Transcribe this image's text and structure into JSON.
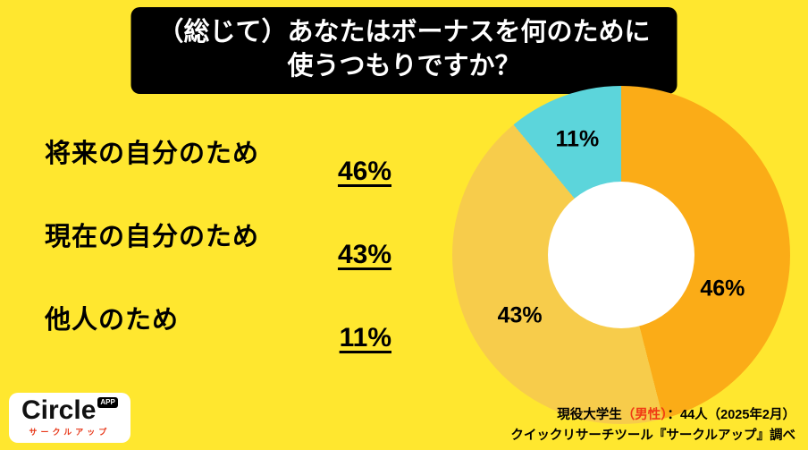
{
  "title": {
    "line1": "（総じて）あなたはボーナスを何のために",
    "line2": "使うつもりですか？"
  },
  "legend": [
    {
      "label": "将来の自分のため",
      "value": "46%"
    },
    {
      "label": "現在の自分のため",
      "value": "43%"
    },
    {
      "label": "他人のため",
      "value": "11%"
    }
  ],
  "chart_data": {
    "type": "pie",
    "donut": true,
    "title": "（総じて）あなたはボーナスを何のために使うつもりですか？",
    "categories": [
      "将来の自分のため",
      "現在の自分のため",
      "他人のため"
    ],
    "values": [
      46,
      43,
      11
    ],
    "labels": [
      "46%",
      "43%",
      "11%"
    ],
    "colors": [
      "#FBAC17",
      "#F7CC4B",
      "#5CD5DB"
    ],
    "start_angle_deg": 0,
    "direction": "clockwise",
    "legend_position": "left"
  },
  "footer": {
    "logo": {
      "name": "Circle",
      "badge": "APP",
      "subtitle": "サークルアップ"
    },
    "source": {
      "line1_prefix": "現役大学生",
      "line1_highlight": "（男性）",
      "line1_suffix": "：44人（2025年2月）",
      "line2": "クイックリサーチツール『サークルアップ』調べ"
    }
  },
  "colors": {
    "background": "#FFE72F",
    "title_box": "#000000",
    "title_text": "#FFFFFF",
    "accent_red": "#F03A14"
  }
}
